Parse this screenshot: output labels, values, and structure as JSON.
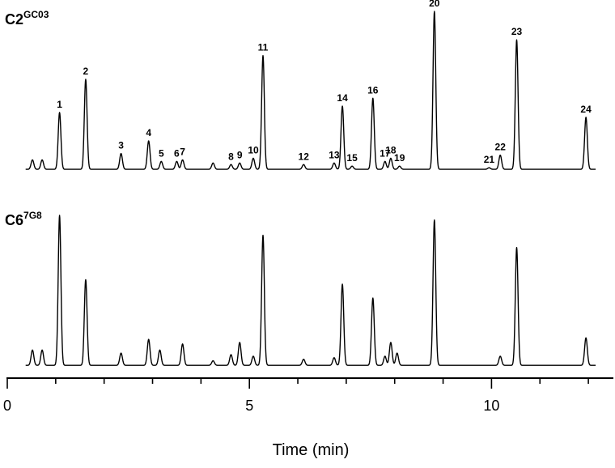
{
  "chart_data": {
    "type": "line",
    "xlabel": "Time (min)",
    "xlim": [
      0,
      12.5
    ],
    "x_ticks": [
      0,
      5,
      10
    ],
    "x_minor_ticks": [
      1,
      2,
      3,
      4,
      6,
      7,
      8,
      9,
      11,
      12
    ],
    "traces": [
      {
        "name": "C2",
        "name_sup": "GC03",
        "baseline": 0.02,
        "peaks": [
          {
            "label": "",
            "t": 0.52,
            "h": 0.06
          },
          {
            "label": "",
            "t": 0.72,
            "h": 0.06
          },
          {
            "label": "1",
            "t": 1.08,
            "h": 0.36
          },
          {
            "label": "2",
            "t": 1.62,
            "h": 0.57
          },
          {
            "label": "3",
            "t": 2.35,
            "h": 0.1
          },
          {
            "label": "4",
            "t": 2.92,
            "h": 0.18
          },
          {
            "label": "5",
            "t": 3.18,
            "h": 0.05
          },
          {
            "label": "6",
            "t": 3.5,
            "h": 0.05
          },
          {
            "label": "7",
            "t": 3.62,
            "h": 0.06
          },
          {
            "label": "",
            "t": 4.25,
            "h": 0.04
          },
          {
            "label": "8",
            "t": 4.62,
            "h": 0.03
          },
          {
            "label": "9",
            "t": 4.8,
            "h": 0.04
          },
          {
            "label": "10",
            "t": 5.08,
            "h": 0.07
          },
          {
            "label": "11",
            "t": 5.28,
            "h": 0.72
          },
          {
            "label": "12",
            "t": 6.12,
            "h": 0.03
          },
          {
            "label": "13",
            "t": 6.75,
            "h": 0.04
          },
          {
            "label": "14",
            "t": 6.92,
            "h": 0.4
          },
          {
            "label": "15",
            "t": 7.12,
            "h": 0.02
          },
          {
            "label": "16",
            "t": 7.55,
            "h": 0.45
          },
          {
            "label": "17",
            "t": 7.8,
            "h": 0.05
          },
          {
            "label": "18",
            "t": 7.92,
            "h": 0.07
          },
          {
            "label": "19",
            "t": 8.1,
            "h": 0.02
          },
          {
            "label": "20",
            "t": 8.82,
            "h": 1.0
          },
          {
            "label": "21",
            "t": 9.95,
            "h": 0.01
          },
          {
            "label": "22",
            "t": 10.18,
            "h": 0.09
          },
          {
            "label": "23",
            "t": 10.52,
            "h": 0.82
          },
          {
            "label": "24",
            "t": 11.95,
            "h": 0.33
          }
        ]
      },
      {
        "name": "C6",
        "name_sup": "7G8",
        "baseline": 0.02,
        "peaks": [
          {
            "label": "",
            "t": 0.52,
            "h": 0.1
          },
          {
            "label": "",
            "t": 0.72,
            "h": 0.1
          },
          {
            "label": "",
            "t": 1.08,
            "h": 0.98
          },
          {
            "label": "",
            "t": 1.62,
            "h": 0.56
          },
          {
            "label": "",
            "t": 2.35,
            "h": 0.08
          },
          {
            "label": "",
            "t": 2.92,
            "h": 0.17
          },
          {
            "label": "",
            "t": 3.15,
            "h": 0.1
          },
          {
            "label": "",
            "t": 3.62,
            "h": 0.14
          },
          {
            "label": "",
            "t": 4.25,
            "h": 0.03
          },
          {
            "label": "",
            "t": 4.62,
            "h": 0.07
          },
          {
            "label": "",
            "t": 4.8,
            "h": 0.15
          },
          {
            "label": "",
            "t": 5.08,
            "h": 0.06
          },
          {
            "label": "",
            "t": 5.28,
            "h": 0.85
          },
          {
            "label": "",
            "t": 6.12,
            "h": 0.04
          },
          {
            "label": "",
            "t": 6.75,
            "h": 0.05
          },
          {
            "label": "",
            "t": 6.92,
            "h": 0.53
          },
          {
            "label": "",
            "t": 7.55,
            "h": 0.44
          },
          {
            "label": "",
            "t": 7.8,
            "h": 0.06
          },
          {
            "label": "",
            "t": 7.92,
            "h": 0.15
          },
          {
            "label": "",
            "t": 8.05,
            "h": 0.08
          },
          {
            "label": "",
            "t": 8.82,
            "h": 0.95
          },
          {
            "label": "",
            "t": 10.18,
            "h": 0.06
          },
          {
            "label": "",
            "t": 10.52,
            "h": 0.77
          },
          {
            "label": "",
            "t": 11.95,
            "h": 0.18
          }
        ]
      }
    ]
  }
}
